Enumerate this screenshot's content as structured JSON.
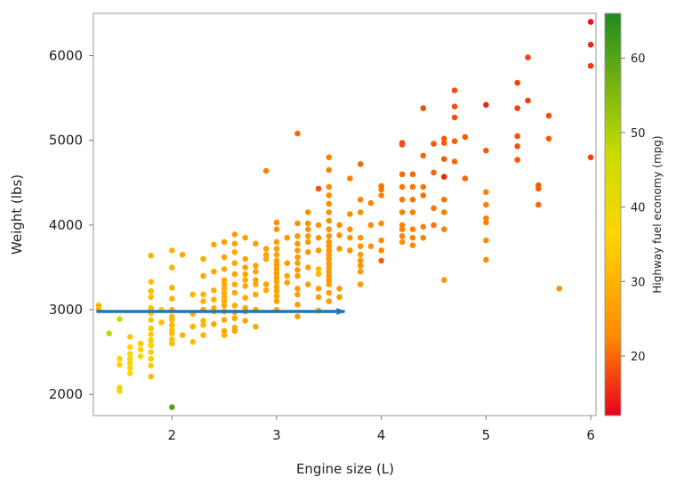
{
  "chart_data": {
    "type": "scatter",
    "xlabel": "Engine size (L)",
    "ylabel": "Weight (lbs)",
    "xlim": [
      1.25,
      6.05
    ],
    "ylim": [
      1750,
      6500
    ],
    "xticks": [
      "2",
      "3",
      "4",
      "5",
      "6"
    ],
    "yticks": [
      "2000",
      "3000",
      "4000",
      "5000",
      "6000"
    ],
    "grid": false,
    "colorbar": {
      "label": "Highway fuel economy (mpg)",
      "range": [
        12,
        66
      ],
      "ticks": [
        "20",
        "30",
        "40",
        "50",
        "60"
      ],
      "colors": {
        "low": "#e8001c",
        "mid_low": "#ff8c00",
        "mid": "#ffd500",
        "mid_high": "#c8dd00",
        "high": "#1f8a1f"
      }
    },
    "annotation": {
      "type": "arrow",
      "from": [
        1.28,
        2980
      ],
      "to": [
        3.65,
        2980
      ],
      "color": "#1f77b4"
    },
    "points": [
      [
        1.3,
        3050,
        30
      ],
      [
        1.3,
        3000,
        30
      ],
      [
        1.4,
        2720,
        48
      ],
      [
        1.5,
        2890,
        46
      ],
      [
        1.5,
        2420,
        36
      ],
      [
        1.5,
        2350,
        36
      ],
      [
        1.5,
        2080,
        39
      ],
      [
        1.5,
        2040,
        40
      ],
      [
        1.6,
        2680,
        34
      ],
      [
        1.6,
        2560,
        36
      ],
      [
        1.6,
        2480,
        38
      ],
      [
        1.6,
        2420,
        38
      ],
      [
        1.6,
        2370,
        37
      ],
      [
        1.6,
        2310,
        36
      ],
      [
        1.6,
        2250,
        37
      ],
      [
        1.7,
        2600,
        34
      ],
      [
        1.7,
        2530,
        35
      ],
      [
        1.7,
        2450,
        36
      ],
      [
        1.8,
        3640,
        30
      ],
      [
        1.8,
        3330,
        32
      ],
      [
        1.8,
        3220,
        32
      ],
      [
        1.8,
        3150,
        32
      ],
      [
        1.8,
        3020,
        32
      ],
      [
        1.8,
        2960,
        34
      ],
      [
        1.8,
        2880,
        34
      ],
      [
        1.8,
        2780,
        34
      ],
      [
        1.8,
        2710,
        34
      ],
      [
        1.8,
        2640,
        35
      ],
      [
        1.8,
        2580,
        35
      ],
      [
        1.8,
        2500,
        35
      ],
      [
        1.8,
        2420,
        35
      ],
      [
        1.8,
        2340,
        35
      ],
      [
        1.8,
        2210,
        32
      ],
      [
        1.9,
        3000,
        42
      ],
      [
        1.9,
        2850,
        32
      ],
      [
        2.0,
        3700,
        30
      ],
      [
        2.0,
        3500,
        30
      ],
      [
        2.0,
        3260,
        30
      ],
      [
        2.0,
        3130,
        30
      ],
      [
        2.0,
        3000,
        30
      ],
      [
        2.0,
        2920,
        31
      ],
      [
        2.0,
        2880,
        31
      ],
      [
        2.0,
        2820,
        31
      ],
      [
        2.0,
        2760,
        32
      ],
      [
        2.0,
        2720,
        32
      ],
      [
        2.0,
        2650,
        32
      ],
      [
        2.0,
        2600,
        32
      ],
      [
        2.0,
        1850,
        60
      ],
      [
        2.1,
        3650,
        28
      ],
      [
        2.1,
        2700,
        30
      ],
      [
        2.2,
        3180,
        30
      ],
      [
        2.2,
        2950,
        30
      ],
      [
        2.2,
        2800,
        30
      ],
      [
        2.2,
        2620,
        32
      ],
      [
        2.3,
        3600,
        28
      ],
      [
        2.3,
        3400,
        28
      ],
      [
        2.3,
        3180,
        30
      ],
      [
        2.3,
        3100,
        30
      ],
      [
        2.3,
        3000,
        28
      ],
      [
        2.3,
        2870,
        30
      ],
      [
        2.3,
        2820,
        30
      ],
      [
        2.3,
        2700,
        30
      ],
      [
        2.4,
        3770,
        28
      ],
      [
        2.4,
        3450,
        28
      ],
      [
        2.4,
        3230,
        29
      ],
      [
        2.4,
        3120,
        30
      ],
      [
        2.4,
        3020,
        30
      ],
      [
        2.4,
        2980,
        30
      ],
      [
        2.4,
        2830,
        28
      ],
      [
        2.5,
        3800,
        26
      ],
      [
        2.5,
        3620,
        27
      ],
      [
        2.5,
        3480,
        28
      ],
      [
        2.5,
        3350,
        28
      ],
      [
        2.5,
        3300,
        28
      ],
      [
        2.5,
        3250,
        29
      ],
      [
        2.5,
        3200,
        29
      ],
      [
        2.5,
        3150,
        29
      ],
      [
        2.5,
        3100,
        29
      ],
      [
        2.5,
        3050,
        28
      ],
      [
        2.5,
        2980,
        28
      ],
      [
        2.5,
        2880,
        28
      ],
      [
        2.5,
        2750,
        28
      ],
      [
        2.5,
        2700,
        30
      ],
      [
        2.6,
        3890,
        26
      ],
      [
        2.6,
        3780,
        27
      ],
      [
        2.6,
        3680,
        28
      ],
      [
        2.6,
        3550,
        28
      ],
      [
        2.6,
        3420,
        28
      ],
      [
        2.6,
        3300,
        29
      ],
      [
        2.6,
        3200,
        29
      ],
      [
        2.6,
        3050,
        28
      ],
      [
        2.6,
        2970,
        28
      ],
      [
        2.6,
        2900,
        28
      ],
      [
        2.6,
        2790,
        29
      ],
      [
        2.6,
        2750,
        28
      ],
      [
        2.7,
        3850,
        26
      ],
      [
        2.7,
        3600,
        27
      ],
      [
        2.7,
        3500,
        27
      ],
      [
        2.7,
        3420,
        28
      ],
      [
        2.7,
        3350,
        28
      ],
      [
        2.7,
        3280,
        28
      ],
      [
        2.7,
        3140,
        28
      ],
      [
        2.7,
        3020,
        28
      ],
      [
        2.7,
        2980,
        28
      ],
      [
        2.7,
        2870,
        28
      ],
      [
        2.8,
        3780,
        26
      ],
      [
        2.8,
        3520,
        27
      ],
      [
        2.8,
        3450,
        27
      ],
      [
        2.8,
        3350,
        27
      ],
      [
        2.8,
        3300,
        28
      ],
      [
        2.8,
        3180,
        28
      ],
      [
        2.8,
        3000,
        28
      ],
      [
        2.8,
        2800,
        28
      ],
      [
        2.9,
        4640,
        22
      ],
      [
        2.9,
        3720,
        26
      ],
      [
        2.9,
        3650,
        27
      ],
      [
        2.9,
        3600,
        27
      ],
      [
        2.9,
        3300,
        27
      ],
      [
        2.9,
        3230,
        28
      ],
      [
        3.0,
        4030,
        24
      ],
      [
        3.0,
        3950,
        25
      ],
      [
        3.0,
        3800,
        26
      ],
      [
        3.0,
        3720,
        26
      ],
      [
        3.0,
        3650,
        26
      ],
      [
        3.0,
        3580,
        26
      ],
      [
        3.0,
        3530,
        26
      ],
      [
        3.0,
        3480,
        26
      ],
      [
        3.0,
        3430,
        26
      ],
      [
        3.0,
        3380,
        26
      ],
      [
        3.0,
        3330,
        27
      ],
      [
        3.0,
        3270,
        27
      ],
      [
        3.0,
        3220,
        27
      ],
      [
        3.0,
        3160,
        27
      ],
      [
        3.0,
        3100,
        27
      ],
      [
        3.0,
        3000,
        28
      ],
      [
        3.1,
        3850,
        25
      ],
      [
        3.1,
        3550,
        26
      ],
      [
        3.1,
        3400,
        27
      ],
      [
        3.1,
        3320,
        27
      ],
      [
        3.2,
        5080,
        20
      ],
      [
        3.2,
        4020,
        24
      ],
      [
        3.2,
        3870,
        25
      ],
      [
        3.2,
        3780,
        25
      ],
      [
        3.2,
        3700,
        25
      ],
      [
        3.2,
        3620,
        26
      ],
      [
        3.2,
        3550,
        26
      ],
      [
        3.2,
        3470,
        26
      ],
      [
        3.2,
        3400,
        26
      ],
      [
        3.2,
        3250,
        26
      ],
      [
        3.2,
        3180,
        26
      ],
      [
        3.2,
        3060,
        26
      ],
      [
        3.2,
        2920,
        26
      ],
      [
        3.3,
        4150,
        24
      ],
      [
        3.3,
        4020,
        24
      ],
      [
        3.3,
        3950,
        24
      ],
      [
        3.3,
        3870,
        25
      ],
      [
        3.3,
        3800,
        25
      ],
      [
        3.3,
        3680,
        25
      ],
      [
        3.3,
        3500,
        26
      ],
      [
        3.3,
        3300,
        26
      ],
      [
        3.4,
        4430,
        18
      ],
      [
        3.4,
        4000,
        24
      ],
      [
        3.4,
        3850,
        24
      ],
      [
        3.4,
        3700,
        25
      ],
      [
        3.4,
        3480,
        31
      ],
      [
        3.4,
        3420,
        31
      ],
      [
        3.4,
        3250,
        26
      ],
      [
        3.4,
        3150,
        26
      ],
      [
        3.4,
        2990,
        26
      ],
      [
        3.5,
        4800,
        22
      ],
      [
        3.5,
        4650,
        22
      ],
      [
        3.5,
        4450,
        23
      ],
      [
        3.5,
        4350,
        23
      ],
      [
        3.5,
        4250,
        23
      ],
      [
        3.5,
        4150,
        24
      ],
      [
        3.5,
        4050,
        24
      ],
      [
        3.5,
        3950,
        24
      ],
      [
        3.5,
        3870,
        24
      ],
      [
        3.5,
        3800,
        24
      ],
      [
        3.5,
        3750,
        25
      ],
      [
        3.5,
        3700,
        25
      ],
      [
        3.5,
        3650,
        25
      ],
      [
        3.5,
        3600,
        25
      ],
      [
        3.5,
        3550,
        25
      ],
      [
        3.5,
        3500,
        25
      ],
      [
        3.5,
        3450,
        25
      ],
      [
        3.5,
        3400,
        25
      ],
      [
        3.5,
        3350,
        25
      ],
      [
        3.5,
        3300,
        26
      ],
      [
        3.5,
        3200,
        26
      ],
      [
        3.5,
        3100,
        26
      ],
      [
        3.6,
        4000,
        24
      ],
      [
        3.6,
        3880,
        24
      ],
      [
        3.6,
        3720,
        25
      ],
      [
        3.6,
        3250,
        26
      ],
      [
        3.6,
        3150,
        26
      ],
      [
        3.7,
        4550,
        22
      ],
      [
        3.7,
        4130,
        23
      ],
      [
        3.7,
        3950,
        24
      ],
      [
        3.7,
        3850,
        24
      ],
      [
        3.7,
        3700,
        24
      ],
      [
        3.8,
        4720,
        20
      ],
      [
        3.8,
        4300,
        22
      ],
      [
        3.8,
        4150,
        23
      ],
      [
        3.8,
        3850,
        24
      ],
      [
        3.8,
        3750,
        24
      ],
      [
        3.8,
        3650,
        25
      ],
      [
        3.8,
        3580,
        25
      ],
      [
        3.8,
        3520,
        25
      ],
      [
        3.8,
        3450,
        25
      ],
      [
        3.8,
        3300,
        26
      ],
      [
        3.9,
        4260,
        22
      ],
      [
        3.9,
        4000,
        23
      ],
      [
        3.9,
        3750,
        24
      ],
      [
        4.0,
        4460,
        21
      ],
      [
        4.0,
        4420,
        21
      ],
      [
        4.0,
        4350,
        22
      ],
      [
        4.0,
        4020,
        23
      ],
      [
        4.0,
        3820,
        23
      ],
      [
        4.0,
        3700,
        23
      ],
      [
        4.0,
        3580,
        19
      ],
      [
        4.2,
        4970,
        18
      ],
      [
        4.2,
        4950,
        18
      ],
      [
        4.2,
        4600,
        20
      ],
      [
        4.2,
        4450,
        21
      ],
      [
        4.2,
        4300,
        21
      ],
      [
        4.2,
        4150,
        22
      ],
      [
        4.2,
        4000,
        22
      ],
      [
        4.2,
        3950,
        22
      ],
      [
        4.2,
        3870,
        22
      ],
      [
        4.2,
        3800,
        23
      ],
      [
        4.3,
        4600,
        20
      ],
      [
        4.3,
        4450,
        21
      ],
      [
        4.3,
        4300,
        21
      ],
      [
        4.3,
        4150,
        22
      ],
      [
        4.3,
        3950,
        22
      ],
      [
        4.3,
        3850,
        22
      ],
      [
        4.3,
        3760,
        23
      ],
      [
        4.4,
        5380,
        18
      ],
      [
        4.4,
        4820,
        20
      ],
      [
        4.4,
        4450,
        21
      ],
      [
        4.4,
        4350,
        21
      ],
      [
        4.4,
        3980,
        22
      ],
      [
        4.4,
        3850,
        22
      ],
      [
        4.5,
        4960,
        19
      ],
      [
        4.5,
        4620,
        20
      ],
      [
        4.5,
        4200,
        21
      ],
      [
        4.5,
        4000,
        21
      ],
      [
        4.6,
        5020,
        19
      ],
      [
        4.6,
        4970,
        19
      ],
      [
        4.6,
        4780,
        19
      ],
      [
        4.6,
        4570,
        15
      ],
      [
        4.6,
        4300,
        21
      ],
      [
        4.6,
        4150,
        22
      ],
      [
        4.6,
        3950,
        22
      ],
      [
        4.6,
        3350,
        25
      ],
      [
        4.7,
        5590,
        18
      ],
      [
        4.7,
        5400,
        18
      ],
      [
        4.7,
        5270,
        18
      ],
      [
        4.7,
        4990,
        19
      ],
      [
        4.7,
        4750,
        20
      ],
      [
        4.8,
        5040,
        19
      ],
      [
        4.8,
        4550,
        20
      ],
      [
        5.0,
        5420,
        15
      ],
      [
        5.0,
        4880,
        19
      ],
      [
        5.0,
        4390,
        22
      ],
      [
        5.0,
        4240,
        22
      ],
      [
        5.0,
        4080,
        22
      ],
      [
        5.0,
        4030,
        22
      ],
      [
        5.0,
        3820,
        23
      ],
      [
        5.0,
        3590,
        23
      ],
      [
        5.3,
        5680,
        17
      ],
      [
        5.3,
        5380,
        17
      ],
      [
        5.3,
        5050,
        18
      ],
      [
        5.3,
        4930,
        18
      ],
      [
        5.3,
        4770,
        19
      ],
      [
        5.4,
        5980,
        17
      ],
      [
        5.4,
        5470,
        17
      ],
      [
        5.5,
        4470,
        19
      ],
      [
        5.5,
        4430,
        19
      ],
      [
        5.5,
        4240,
        20
      ],
      [
        5.6,
        5290,
        18
      ],
      [
        5.6,
        5020,
        19
      ],
      [
        5.7,
        3250,
        24
      ],
      [
        6.0,
        6400,
        13
      ],
      [
        6.0,
        6130,
        15
      ],
      [
        6.0,
        5880,
        16
      ],
      [
        6.0,
        4800,
        17
      ]
    ]
  }
}
